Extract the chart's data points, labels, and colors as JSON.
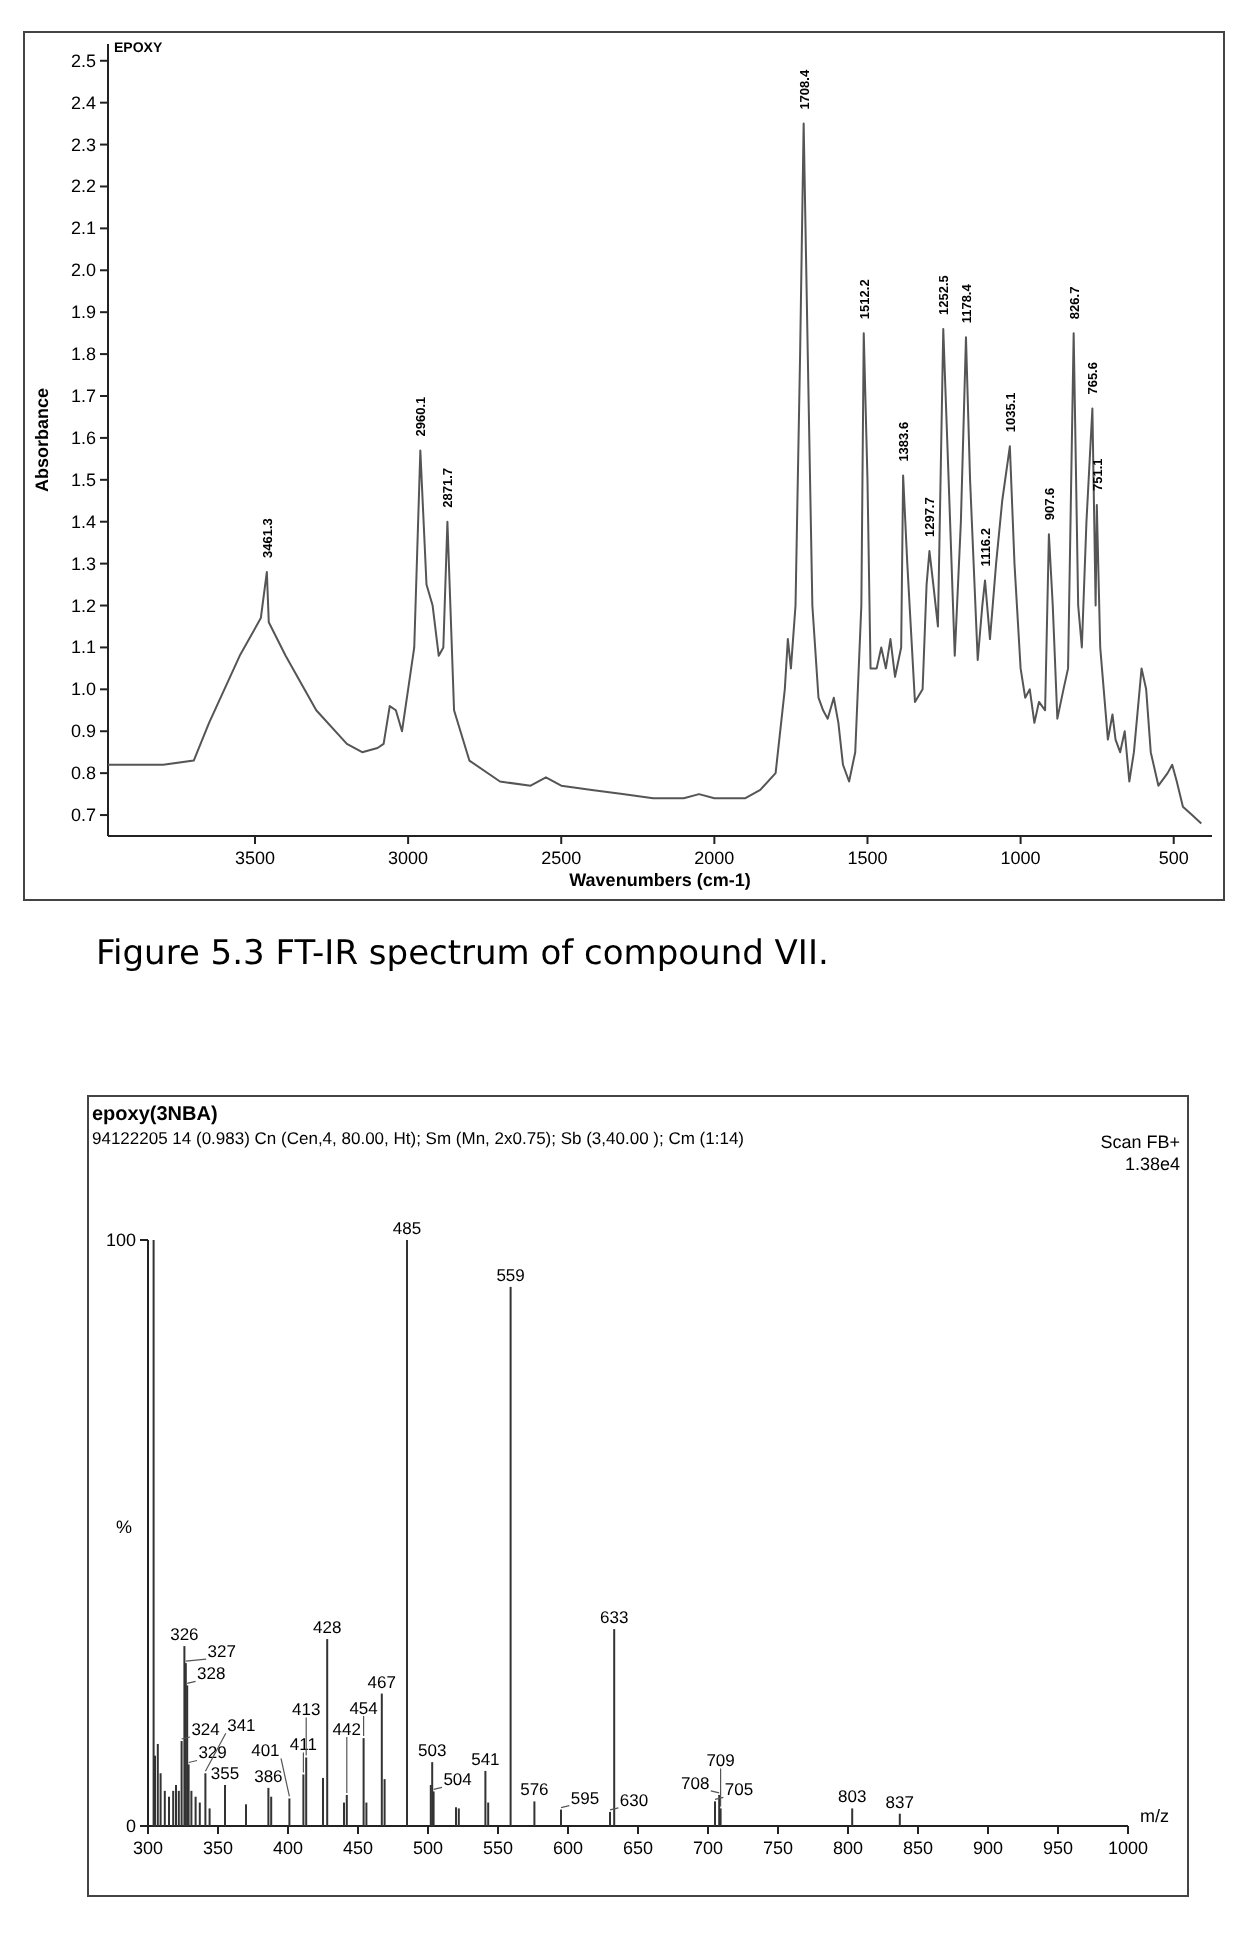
{
  "chart_data": [
    {
      "type": "line",
      "title": "EPOXY",
      "xlabel": "Wavenumbers (cm-1)",
      "ylabel": "Absorbance",
      "color": "#555555",
      "xlim": [
        3980,
        375
      ],
      "ylim": [
        0.65,
        2.54
      ],
      "xticks": [
        3500,
        3000,
        2500,
        2000,
        1500,
        1000,
        500
      ],
      "yticks": [
        0.7,
        0.8,
        0.9,
        {
          "value": 1,
          "label": "1.0"
        },
        1.1,
        1.2,
        1.3,
        1.4,
        1.5,
        1.6,
        1.7,
        1.8,
        1.9,
        {
          "value": 2,
          "label": "2.0"
        },
        2.1,
        2.2,
        2.3,
        2.4,
        2.5
      ],
      "x": [
        3980,
        3800,
        3700,
        3650,
        3550,
        3481,
        3461.3,
        3455,
        3400,
        3300,
        3200,
        3150,
        3100,
        3080,
        3060,
        3040,
        3020,
        3000,
        2980,
        2960.1,
        2940,
        2920,
        2900,
        2885,
        2871.7,
        2850,
        2800,
        2700,
        2600,
        2550,
        2500,
        2400,
        2300,
        2200,
        2100,
        2050,
        2000,
        1900,
        1850,
        1800,
        1770,
        1760,
        1750,
        1735,
        1720,
        1708.4,
        1695,
        1680,
        1660,
        1645,
        1630,
        1610,
        1595,
        1580,
        1560,
        1540,
        1520,
        1512.2,
        1500,
        1490,
        1470,
        1455,
        1440,
        1425,
        1410,
        1390,
        1383.6,
        1370,
        1345,
        1320,
        1307,
        1297.7,
        1285,
        1270,
        1252.5,
        1235,
        1215,
        1195,
        1178.4,
        1165,
        1140,
        1125,
        1116.2,
        1100,
        1080,
        1060,
        1035.1,
        1020,
        1000,
        985,
        970,
        955,
        940,
        920,
        907.6,
        895,
        880,
        860,
        845,
        826.7,
        812,
        800,
        785,
        765.6,
        755,
        751.1,
        740,
        715,
        700,
        690,
        675,
        660,
        645,
        630,
        605,
        590,
        575,
        550,
        520,
        505,
        490,
        470,
        440,
        410
      ],
      "values": [
        0.82,
        0.82,
        0.83,
        0.92,
        1.08,
        1.17,
        1.28,
        1.16,
        1.08,
        0.95,
        0.87,
        0.85,
        0.86,
        0.87,
        0.96,
        0.95,
        0.9,
        1.0,
        1.1,
        1.57,
        1.25,
        1.2,
        1.08,
        1.1,
        1.4,
        0.95,
        0.83,
        0.78,
        0.77,
        0.79,
        0.77,
        0.76,
        0.75,
        0.74,
        0.74,
        0.75,
        0.74,
        0.74,
        0.76,
        0.8,
        1.0,
        1.12,
        1.05,
        1.2,
        1.8,
        2.35,
        1.8,
        1.2,
        0.98,
        0.95,
        0.93,
        0.98,
        0.92,
        0.82,
        0.78,
        0.85,
        1.2,
        1.85,
        1.5,
        1.05,
        1.05,
        1.1,
        1.05,
        1.12,
        1.03,
        1.1,
        1.51,
        1.3,
        0.97,
        1.0,
        1.25,
        1.33,
        1.25,
        1.15,
        1.86,
        1.5,
        1.08,
        1.4,
        1.84,
        1.5,
        1.07,
        1.2,
        1.26,
        1.12,
        1.3,
        1.45,
        1.58,
        1.3,
        1.05,
        0.98,
        1.0,
        0.92,
        0.97,
        0.95,
        1.37,
        1.2,
        0.93,
        1.0,
        1.05,
        1.85,
        1.2,
        1.1,
        1.4,
        1.67,
        1.2,
        1.44,
        1.1,
        0.88,
        0.94,
        0.88,
        0.85,
        0.9,
        0.78,
        0.85,
        1.05,
        1.0,
        0.85,
        0.77,
        0.8,
        0.82,
        0.78,
        0.72,
        0.7,
        0.68
      ],
      "annotations": [
        {
          "text": "3461.3",
          "x": 3461.3,
          "y": 1.28
        },
        {
          "text": "2960.1",
          "x": 2960.1,
          "y": 1.57
        },
        {
          "text": "2871.7",
          "x": 2871.7,
          "y": 1.4
        },
        {
          "text": "1708.4",
          "x": 1708.4,
          "y": 2.35
        },
        {
          "text": "1512.2",
          "x": 1512.2,
          "y": 1.85
        },
        {
          "text": "1383.6",
          "x": 1383.6,
          "y": 1.51
        },
        {
          "text": "1297.7",
          "x": 1297.7,
          "y": 1.33
        },
        {
          "text": "1252.5",
          "x": 1252.5,
          "y": 1.86
        },
        {
          "text": "1178.4",
          "x": 1178.4,
          "y": 1.84
        },
        {
          "text": "1116.2",
          "x": 1116.2,
          "y": 1.26
        },
        {
          "text": "1035.1",
          "x": 1035.1,
          "y": 1.58
        },
        {
          "text": "907.6",
          "x": 907.6,
          "y": 1.37
        },
        {
          "text": "826.7",
          "x": 826.7,
          "y": 1.85
        },
        {
          "text": "765.6",
          "x": 765.6,
          "y": 1.67
        },
        {
          "text": "751.1",
          "x": 751.1,
          "y": 1.44
        },
        "Figure 5.3    FT-IR spectrum of compound VII."
      ]
    },
    {
      "type": "bar",
      "title": "epoxy(3NBA)",
      "subtitle": "94122205  14 (0.983) Cn (Cen,4, 80.00, Ht); Sm (Mn, 2x0.75); Sb (3,40.00 ); Cm (1:14)",
      "xlabel": "m/z",
      "ylabel": "%",
      "color": "#333333",
      "xlim": [
        300,
        1000
      ],
      "ylim": [
        0,
        100
      ],
      "xticks": [
        300,
        350,
        400,
        450,
        500,
        550,
        600,
        650,
        700,
        750,
        800,
        850,
        900,
        950,
        1000
      ],
      "yticks": [
        0,
        100
      ],
      "x": [
        304,
        305,
        307,
        309,
        312,
        315,
        318,
        320,
        322,
        324,
        326,
        327,
        328,
        329,
        331,
        334,
        337,
        341,
        344,
        355,
        370,
        386,
        388,
        401,
        411,
        413,
        425,
        428,
        440,
        442,
        454,
        456,
        467,
        469,
        485,
        502,
        503,
        504,
        520,
        522,
        541,
        543,
        559,
        576,
        595,
        630,
        633,
        705,
        708,
        709,
        803,
        837
      ],
      "values": [
        100,
        12,
        14,
        9,
        6,
        5,
        6,
        7,
        6,
        14.5,
        30.7,
        27.8,
        24,
        10.5,
        6,
        5,
        4,
        9,
        3,
        7,
        3.7,
        6.5,
        5,
        4.7,
        8.8,
        11.7,
        8.2,
        31.9,
        4,
        5.3,
        15,
        4,
        22.6,
        8,
        100,
        7,
        10.9,
        5.9,
        3.2,
        3,
        9.4,
        4,
        92,
        4.2,
        2.8,
        2.4,
        33.6,
        4.2,
        5.3,
        3,
        3,
        2.1
      ],
      "annotations": [
        "Scan FB+",
        "1.38e4",
        {
          "text": "324",
          "x": 324,
          "y": 14.5
        },
        {
          "text": "326",
          "x": 326,
          "y": 30.7
        },
        {
          "text": "327",
          "x": 327,
          "y": 27.8
        },
        {
          "text": "328",
          "x": 328,
          "y": 24
        },
        {
          "text": "329",
          "x": 329,
          "y": 10.5
        },
        {
          "text": "341",
          "x": 341,
          "y": 9
        },
        {
          "text": "355",
          "x": 355,
          "y": 7
        },
        {
          "text": "386",
          "x": 386,
          "y": 6.5
        },
        {
          "text": "401",
          "x": 401,
          "y": 4.7
        },
        {
          "text": "411",
          "x": 411,
          "y": 8.8
        },
        {
          "text": "413",
          "x": 413,
          "y": 11.7
        },
        {
          "text": "428",
          "x": 428,
          "y": 31.9
        },
        {
          "text": "442",
          "x": 442,
          "y": 5.3
        },
        {
          "text": "454",
          "x": 454,
          "y": 15
        },
        {
          "text": "467",
          "x": 467,
          "y": 22.6
        },
        {
          "text": "485",
          "x": 485,
          "y": 100
        },
        {
          "text": "503",
          "x": 503,
          "y": 10.9
        },
        {
          "text": "504",
          "x": 504,
          "y": 5.9
        },
        {
          "text": "541",
          "x": 541,
          "y": 9.4
        },
        {
          "text": "559",
          "x": 559,
          "y": 92
        },
        {
          "text": "576",
          "x": 576,
          "y": 4.2
        },
        {
          "text": "595",
          "x": 595,
          "y": 2.8
        },
        {
          "text": "630",
          "x": 630,
          "y": 2.4
        },
        {
          "text": "633",
          "x": 633,
          "y": 33.6
        },
        {
          "text": "705",
          "x": 705,
          "y": 4.2
        },
        {
          "text": "708",
          "x": 708,
          "y": 5.3
        },
        {
          "text": "709",
          "x": 709,
          "y": 3
        },
        {
          "text": "803",
          "x": 803,
          "y": 3
        },
        {
          "text": "837",
          "x": 837,
          "y": 2.1
        }
      ]
    }
  ]
}
